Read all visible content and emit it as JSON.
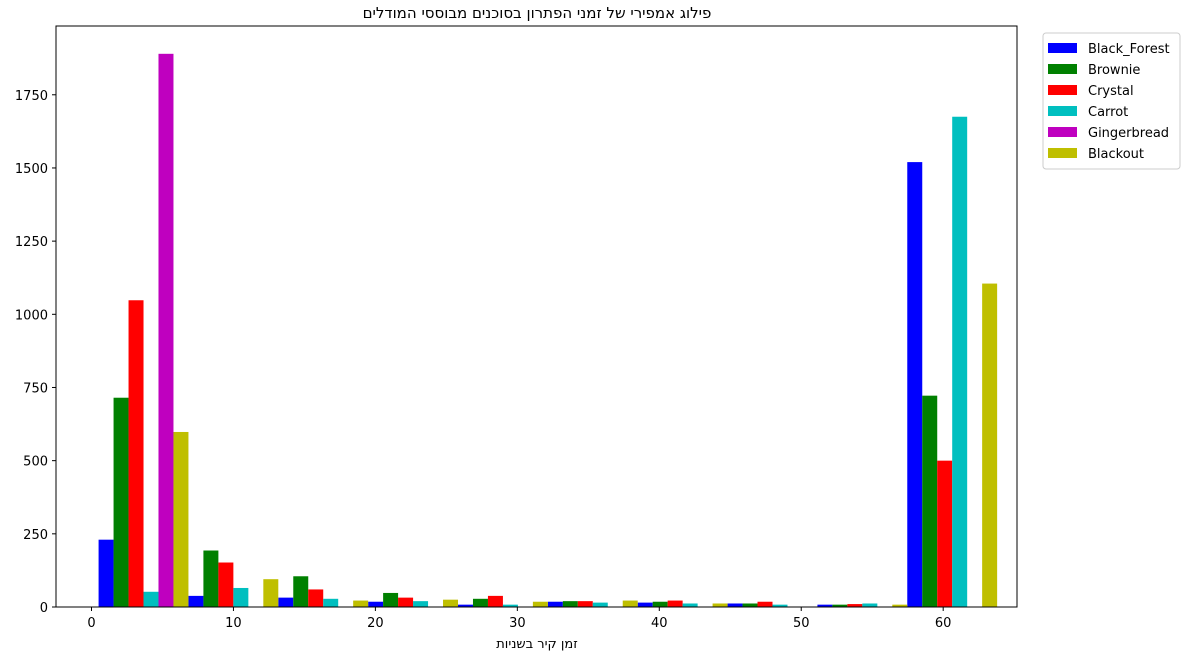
{
  "chart_data": {
    "type": "bar",
    "title": "פילוג אמפירי של זמני הפתרון בסוכנים מבוססי המודלים",
    "xlabel": "זמן קיר בשניות",
    "ylabel": "",
    "xlim": [
      -2.5,
      65.2
    ],
    "ylim": [
      0,
      1985
    ],
    "xticks": [
      0,
      10,
      20,
      30,
      40,
      50,
      60
    ],
    "yticks": [
      0,
      250,
      500,
      750,
      1000,
      1250,
      1500,
      1750
    ],
    "bin_width": 6.33,
    "bin_starts": [
      0.5,
      6.83,
      13.16,
      19.49,
      25.82,
      32.15,
      38.48,
      44.81,
      51.14,
      57.47
    ],
    "grid": false,
    "legend_position": "outside-top-right",
    "series": [
      {
        "name": "Black_Forest",
        "color": "#0000ff",
        "values": [
          230,
          38,
          32,
          18,
          8,
          18,
          15,
          12,
          8,
          1520
        ]
      },
      {
        "name": "Brownie",
        "color": "#008000",
        "values": [
          715,
          193,
          105,
          48,
          28,
          20,
          18,
          12,
          8,
          722
        ]
      },
      {
        "name": "Crystal",
        "color": "#ff0000",
        "values": [
          1048,
          152,
          60,
          32,
          38,
          20,
          22,
          18,
          10,
          500
        ]
      },
      {
        "name": "Carrot",
        "color": "#00bfbf",
        "values": [
          52,
          65,
          28,
          20,
          8,
          15,
          12,
          8,
          12,
          1675
        ]
      },
      {
        "name": "Gingerbread",
        "color": "#bf00bf",
        "values": [
          1890,
          0,
          0,
          0,
          0,
          0,
          0,
          0,
          0,
          0
        ]
      },
      {
        "name": "Blackout",
        "color": "#bfbf00",
        "values": [
          598,
          95,
          22,
          25,
          18,
          22,
          12,
          0,
          8,
          1105
        ]
      }
    ]
  }
}
